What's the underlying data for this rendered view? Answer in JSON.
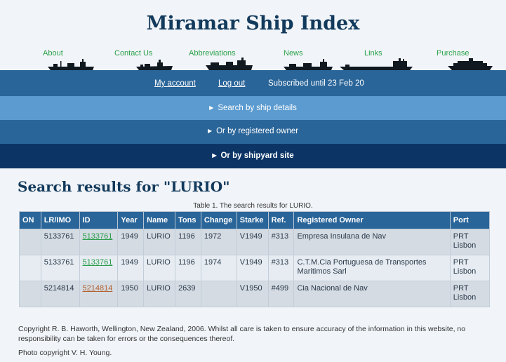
{
  "site": {
    "title": "Miramar Ship Index"
  },
  "topnav": [
    "About",
    "Contact Us",
    "Abbreviations",
    "News",
    "Links",
    "Purchase"
  ],
  "account": {
    "my_account": "My account",
    "logout": "Log out",
    "subscription": "Subscribed until 23 Feb 20"
  },
  "search_menu": {
    "by_ship": "Search by ship details",
    "by_owner": "Or by registered owner",
    "by_shipyard": "Or by shipyard site"
  },
  "results": {
    "heading": "Search results for \"LURIO\"",
    "caption": "Table 1. The search results for LURIO.",
    "columns": [
      "ON",
      "LR/IMO",
      "ID",
      "Year",
      "Name",
      "Tons",
      "Change",
      "Starke",
      "Ref.",
      "Registered Owner",
      "Port"
    ],
    "rows": [
      {
        "on": "",
        "lr_imo": "5133761",
        "id": "5133761",
        "year": "1949",
        "name": "LURIO",
        "tons": "1196",
        "change": "1972",
        "starke": "V1949",
        "ref": "#313",
        "owner": "Empresa Insulana de Nav",
        "port_code": "PRT",
        "port_name": "Lisbon"
      },
      {
        "on": "",
        "lr_imo": "5133761",
        "id": "5133761",
        "year": "1949",
        "name": "LURIO",
        "tons": "1196",
        "change": "1974",
        "starke": "V1949",
        "ref": "#313",
        "owner": "C.T.M.Cia Portuguesa de Transportes Maritimos Sarl",
        "port_code": "PRT",
        "port_name": "Lisbon"
      },
      {
        "on": "",
        "lr_imo": "5214814",
        "id": "5214814",
        "year": "1950",
        "name": "LURIO",
        "tons": "2639",
        "change": "",
        "starke": "V1950",
        "ref": "#499",
        "owner": "Cia Nacional de Nav",
        "port_code": "PRT",
        "port_name": "Lisbon"
      }
    ]
  },
  "footer": {
    "copyright": "Copyright R. B. Haworth, Wellington, New Zealand, 2006. Whilst all care is taken to ensure accuracy of the information in this website, no responsibility can be taken for errors or the consequences thereof.",
    "photo": "Photo copyright V. H. Young."
  },
  "colors": {
    "title": "#123a5c",
    "nav_link": "#2aa14a",
    "band_dark": "#2a6599",
    "band_light": "#5b9bd0",
    "band_navy": "#0c3566",
    "visited_id": "#b3622e"
  }
}
